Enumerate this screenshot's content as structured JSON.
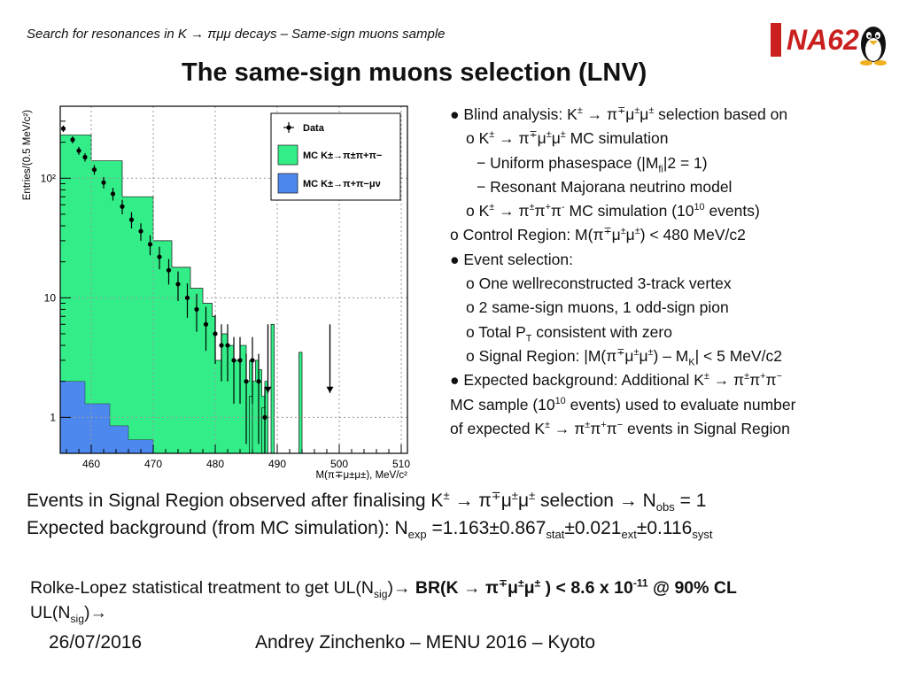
{
  "header": {
    "subtitle": "Search for resonances in K → πμμ decays – Same-sign muons sample",
    "title": "The same-sign muons selection (LNV)",
    "logo_text": "NA62"
  },
  "chart_data": {
    "type": "bar",
    "title": "",
    "xlabel": "M(π∓μ±μ±), MeV/c²",
    "ylabel": "Entries/(0.5 MeV/c²)",
    "xlim": [
      455,
      511
    ],
    "ylim": [
      0.5,
      400
    ],
    "log_y": true,
    "grid": true,
    "x_ticks": [
      460,
      470,
      480,
      490,
      500,
      510
    ],
    "y_ticks": [
      1,
      10,
      100
    ],
    "y_tick_labels": [
      "1",
      "10",
      "10²"
    ],
    "legend_placement": "top-right",
    "legend": [
      "Data",
      "MC K±→π±π+π−",
      "MC K±→π+π−μν"
    ],
    "colors": {
      "data": "#000000",
      "mc_3pi": "#33ee88",
      "mc_pimunu": "#4d88ee",
      "grid": "#999999"
    },
    "bin_width": 0.5,
    "mc_3pi": [
      [
        455.0,
        230
      ],
      [
        460.0,
        140
      ],
      [
        465.0,
        70
      ],
      [
        470.0,
        30
      ],
      [
        473.0,
        18
      ],
      [
        476.0,
        12
      ],
      [
        478.0,
        9
      ],
      [
        479.5,
        7
      ],
      [
        480.0,
        3
      ],
      [
        481.0,
        5
      ],
      [
        482.0,
        4
      ],
      [
        483.0,
        3
      ],
      [
        484.0,
        4
      ],
      [
        485.0,
        2
      ],
      [
        485.5,
        3
      ],
      [
        486.0,
        2
      ],
      [
        486.5,
        3
      ],
      [
        487.0,
        2.5
      ],
      [
        487.5,
        1.5
      ],
      [
        488.0,
        2
      ],
      [
        488.5,
        0.5
      ],
      [
        490.0,
        0.5
      ],
      [
        491.0,
        0.5
      ],
      [
        494.0,
        0.5
      ]
    ],
    "mc_3pi_spikes": [
      {
        "x": 485.5,
        "y": 1.5
      },
      {
        "x": 487.5,
        "y": 1.2
      },
      {
        "x": 489.0,
        "y": 6.0
      },
      {
        "x": 493.5,
        "y": 3.5
      }
    ],
    "mc_pimunu": [
      [
        455.0,
        2.0
      ],
      [
        459.0,
        1.3
      ],
      [
        463.0,
        0.85
      ],
      [
        466.0,
        0.65
      ],
      [
        470.0,
        0.5
      ]
    ],
    "data": [
      {
        "x": 455.5,
        "y": 260,
        "e": 16
      },
      {
        "x": 457.0,
        "y": 210,
        "e": 14
      },
      {
        "x": 458.0,
        "y": 170,
        "e": 13
      },
      {
        "x": 459.0,
        "y": 150,
        "e": 12
      },
      {
        "x": 460.5,
        "y": 118,
        "e": 11
      },
      {
        "x": 462.0,
        "y": 92,
        "e": 10
      },
      {
        "x": 463.5,
        "y": 74,
        "e": 9
      },
      {
        "x": 465.0,
        "y": 58,
        "e": 8
      },
      {
        "x": 466.5,
        "y": 45,
        "e": 7
      },
      {
        "x": 468.0,
        "y": 36,
        "e": 6
      },
      {
        "x": 469.5,
        "y": 28,
        "e": 5.3
      },
      {
        "x": 471.0,
        "y": 22,
        "e": 4.7
      },
      {
        "x": 472.5,
        "y": 17,
        "e": 4.1
      },
      {
        "x": 474.0,
        "y": 13,
        "e": 3.6
      },
      {
        "x": 475.5,
        "y": 10,
        "e": 3.2
      },
      {
        "x": 477.0,
        "y": 8,
        "e": 2.8
      },
      {
        "x": 478.5,
        "y": 6,
        "e": 2.4
      },
      {
        "x": 480.0,
        "y": 5,
        "e": 2.2
      },
      {
        "x": 481.0,
        "y": 4,
        "e": 2.0
      },
      {
        "x": 482.0,
        "y": 4,
        "e": 2.0
      },
      {
        "x": 483.0,
        "y": 3,
        "e": 1.7
      },
      {
        "x": 484.0,
        "y": 3,
        "e": 1.7
      },
      {
        "x": 485.0,
        "y": 2,
        "e": 1.4
      },
      {
        "x": 486.0,
        "y": 3,
        "e": 1.7
      },
      {
        "x": 487.0,
        "y": 2,
        "e": 1.4
      },
      {
        "x": 488.0,
        "y": 1,
        "e": 0.8
      }
    ],
    "signal_region_arrows": [
      {
        "x": 488.5,
        "y_top": 6,
        "y_bottom": 1.6
      },
      {
        "x": 498.5,
        "y_top": 6,
        "y_bottom": 1.6
      }
    ]
  },
  "bullets": [
    {
      "html": "● Blind analysis: K<sup>±</sup> → π<sup>∓</sup>μ<sup>±</sup>μ<sup>±</sup> selection based on",
      "indent": 0
    },
    {
      "html": "o K<sup>±</sup> → π<sup>∓</sup>μ<sup>±</sup>μ<sup>±</sup>  MC simulation",
      "indent": 1
    },
    {
      "html": "− Uniform phasespace (|M<sub>fi</sub>|2 = 1)",
      "indent": 2
    },
    {
      "html": "− Resonant Majorana neutrino model",
      "indent": 2
    },
    {
      "html": "o K<sup>±</sup> → π<sup>±</sup>π<sup>+</sup>π<sup>-</sup> MC simulation (10<sup>10</sup> events)",
      "indent": 1
    },
    {
      "html": "o Control Region: M(π<sup>∓</sup>μ<sup>±</sup>μ<sup>±</sup>) &lt; 480 MeV/c2",
      "indent": 0
    },
    {
      "html": "● Event selection:",
      "indent": 0
    },
    {
      "html": "o One wellreconstructed 3-track vertex",
      "indent": 1
    },
    {
      "html": "o 2 same-sign muons, 1 odd-sign pion",
      "indent": 1
    },
    {
      "html": "o Total P<sub>T</sub> consistent with zero",
      "indent": 1
    },
    {
      "html": "o Signal Region: |M(π<sup>∓</sup>μ<sup>±</sup>μ<sup>±</sup>) – M<sub>K</sub>| &lt; 5 MeV/c2",
      "indent": 1
    },
    {
      "html": "● Expected background: Additional K<sup>±</sup> → π<sup>±</sup>π<sup>+</sup>π<sup>−</sup>",
      "indent": 0
    },
    {
      "html": "MC sample (10<sup>10</sup> events) used to evaluate number",
      "indent": 0
    },
    {
      "html": "of expected K<sup>±</sup> → π<sup>±</sup>π<sup>+</sup>π<sup>−</sup> events in Signal Region",
      "indent": 0
    }
  ],
  "results": {
    "line1": "Events in Signal Region observed after finalising K<sup>±</sup> → π<sup>∓</sup>μ<sup>±</sup>μ<sup>±</sup> selection → N<sub>obs</sub> = 1",
    "line2": "Expected background (from MC simulation): N<sub>exp</sub> =1.163±0.867<sub>stat</sub>±0.021<sub>ext</sub>±0.116<sub>syst</sub>",
    "rolke1": "Rolke-Lopez statistical treatment to get UL(N<sub>sig</sub>)→ <b>BR(K → π<sup>∓</sup>μ<sup>±</sup>μ<sup>±</sup> ) &lt; 8.6 x 10<sup>-11</sup> @ 90% CL</b>",
    "rolke2": "UL(N<sub>sig</sub>)→"
  },
  "footer": {
    "date": "26/07/2016",
    "author": "Andrey Zinchenko – MENU 2016 – Kyoto"
  }
}
